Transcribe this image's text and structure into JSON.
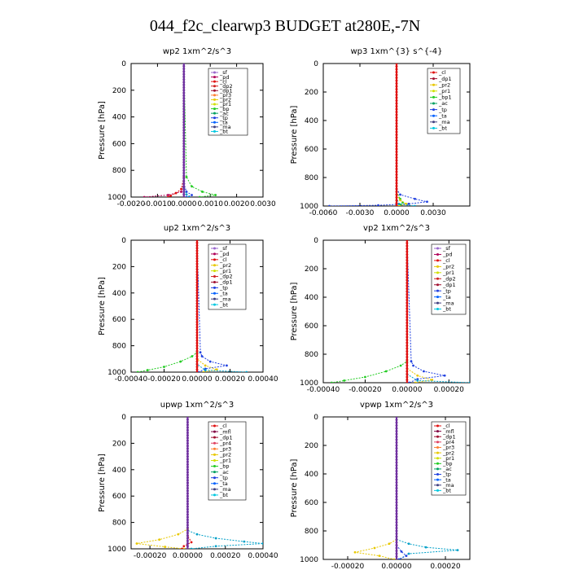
{
  "figure": {
    "title": "044_f2c_clearwp3  BUDGET at280E,-7N"
  },
  "chart_data": [
    {
      "type": "line",
      "title": "wp2   1xm^2/s^3",
      "ylabel": "Pressure [hPa]",
      "xlim": [
        -0.002,
        0.003
      ],
      "ylim": [
        1000,
        0
      ],
      "xticks": [
        -0.002,
        -0.001,
        0,
        0.001,
        0.002,
        0.003
      ],
      "xtick_labels": [
        "-0.0020",
        "-0.0010",
        "0.0000",
        "0.0010",
        "0.0020",
        "0.0030"
      ],
      "yticks": [
        0,
        200,
        400,
        600,
        800,
        1000
      ],
      "legend": [
        "_sf",
        "_pd",
        "_cl",
        "_dp2",
        "_dp1",
        "_pr3",
        "_pr2",
        "_pr1",
        "_bp",
        "_ac",
        "_tp",
        "_ta",
        "_ma",
        "_bt"
      ],
      "series": [
        {
          "name": "_pd",
          "color": "#b00058",
          "x": [
            0,
            0,
            0,
            -0.0001,
            -0.0006,
            -0.0015
          ],
          "y": [
            0,
            700,
            900,
            960,
            985,
            1000
          ]
        },
        {
          "name": "_dp2",
          "color": "#e01010",
          "x": [
            0,
            0,
            -0.0001,
            -0.0003,
            -0.0005,
            -0.0006
          ],
          "y": [
            0,
            850,
            940,
            970,
            990,
            1000
          ]
        },
        {
          "name": "_bp",
          "color": "#22cc22",
          "x": [
            0,
            0.0001,
            0.0003,
            0.0007,
            0.0012,
            0.0006
          ],
          "y": [
            0,
            850,
            920,
            960,
            985,
            1000
          ]
        },
        {
          "name": "_tp",
          "color": "#2040e0",
          "x": [
            0,
            0,
            0.0001,
            0.0003,
            0.0001
          ],
          "y": [
            0,
            900,
            960,
            985,
            1000
          ]
        },
        {
          "name": "_ac",
          "color": "#00a0c8",
          "x": [
            0,
            0,
            0.0001,
            0.0002
          ],
          "y": [
            0,
            930,
            980,
            1000
          ]
        },
        {
          "name": "_bt",
          "color": "#7030a0",
          "x": [
            0,
            0,
            0
          ],
          "y": [
            0,
            500,
            1000
          ]
        }
      ]
    },
    {
      "type": "line",
      "title": "wp3   1xm^{3} s^{-4}",
      "ylabel": "Pressure [hPa]",
      "xlim": [
        -0.006,
        0.006
      ],
      "ylim": [
        1000,
        0
      ],
      "xticks": [
        -0.006,
        -0.003,
        0,
        0.003
      ],
      "xtick_labels": [
        "-0.0060",
        "-0.0030",
        "0.0000",
        "0.0030"
      ],
      "yticks": [
        0,
        200,
        400,
        600,
        800,
        1000
      ],
      "legend": [
        "_cl",
        "_dp1",
        "_pr2",
        "_pr1",
        "_bp1",
        "_ac",
        "_tp",
        "_ta",
        "_ma",
        "_bt"
      ],
      "series": [
        {
          "name": "_tp",
          "color": "#2040e0",
          "x": [
            0,
            0,
            0.0003,
            0.0015,
            0.0025,
            0.001,
            -0.0015,
            -0.0055
          ],
          "y": [
            0,
            880,
            920,
            950,
            970,
            985,
            995,
            1000
          ]
        },
        {
          "name": "_pr1",
          "color": "#22cc22",
          "x": [
            0,
            0,
            0.0003,
            0.0005,
            0.0003,
            0
          ],
          "y": [
            0,
            900,
            950,
            975,
            990,
            1000
          ]
        },
        {
          "name": "_pr2",
          "color": "#e8c800",
          "x": [
            0,
            0,
            0.0003,
            0.0008,
            0.0002
          ],
          "y": [
            0,
            920,
            960,
            985,
            1000
          ]
        },
        {
          "name": "_ac",
          "color": "#00a0c8",
          "x": [
            0,
            0,
            0.0002,
            0.0015
          ],
          "y": [
            0,
            940,
            985,
            1000
          ]
        },
        {
          "name": "_cl",
          "color": "#e01010",
          "x": [
            0,
            0,
            0
          ],
          "y": [
            0,
            500,
            1000
          ]
        }
      ]
    },
    {
      "type": "line",
      "title": "up2   1xm^2/s^3",
      "ylabel": "Pressure [hPa]",
      "xlim": [
        -0.0004,
        0.0004
      ],
      "ylim": [
        1000,
        0
      ],
      "xticks": [
        -0.0004,
        -0.0002,
        0,
        0.0002,
        0.0004
      ],
      "xtick_labels": [
        "-0.00040",
        "-0.00020",
        "0.00000",
        "0.00020",
        "0.00040"
      ],
      "yticks": [
        0,
        200,
        400,
        600,
        800,
        1000
      ],
      "legend": [
        "_sf",
        "_pd",
        "_cl",
        "_pr2",
        "_pr1",
        "_dp2",
        "_dp1",
        "_tp",
        "_ta",
        "_ma",
        "_bt"
      ],
      "series": [
        {
          "name": "_dp2",
          "color": "#22cc22",
          "x": [
            0,
            0,
            -3e-05,
            -0.0001,
            -0.0002,
            -0.0003,
            -0.00036
          ],
          "y": [
            0,
            850,
            880,
            920,
            960,
            985,
            1000
          ]
        },
        {
          "name": "_tp",
          "color": "#2040e0",
          "x": [
            0,
            2e-05,
            3e-05,
            8e-05,
            0.00018,
            5e-05,
            1e-05
          ],
          "y": [
            0,
            850,
            880,
            920,
            950,
            975,
            1000
          ]
        },
        {
          "name": "_pr1",
          "color": "#e8c800",
          "x": [
            0,
            0,
            5e-05,
            0.00012,
            4e-05
          ],
          "y": [
            0,
            900,
            950,
            980,
            1000
          ]
        },
        {
          "name": "_ta",
          "color": "#00a0c8",
          "x": [
            0,
            0,
            5e-05,
            0.0003
          ],
          "y": [
            0,
            940,
            985,
            1000
          ]
        },
        {
          "name": "_pd",
          "color": "#e01010",
          "x": [
            0,
            0,
            0
          ],
          "y": [
            0,
            500,
            1000
          ]
        }
      ]
    },
    {
      "type": "line",
      "title": "vp2   1xm^2/s^3",
      "ylabel": "Pressure [hPa]",
      "xlim": [
        -0.0004,
        0.0003
      ],
      "ylim": [
        1000,
        0
      ],
      "xticks": [
        -0.0004,
        -0.0002,
        0,
        0.0002
      ],
      "xtick_labels": [
        "-0.00040",
        "-0.00020",
        "0.00000",
        "0.00020"
      ],
      "yticks": [
        0,
        200,
        400,
        600,
        800,
        1000
      ],
      "legend": [
        "_sf",
        "_pd",
        "_cl",
        "_pr2",
        "_pr1",
        "_dp2",
        "_dp1",
        "_tp",
        "_ta",
        "_ma",
        "_bt"
      ],
      "series": [
        {
          "name": "_dp2",
          "color": "#22cc22",
          "x": [
            0,
            0,
            -3e-05,
            -0.0001,
            -0.0002,
            -0.0003,
            -0.00036
          ],
          "y": [
            0,
            850,
            880,
            920,
            960,
            985,
            1000
          ]
        },
        {
          "name": "_tp",
          "color": "#2040e0",
          "x": [
            0,
            2e-05,
            3e-05,
            8e-05,
            0.00018,
            5e-05,
            1e-05
          ],
          "y": [
            0,
            850,
            880,
            920,
            950,
            975,
            1000
          ]
        },
        {
          "name": "_pr1",
          "color": "#e8c800",
          "x": [
            0,
            0,
            5e-05,
            0.00012,
            4e-05
          ],
          "y": [
            0,
            900,
            950,
            980,
            1000
          ]
        },
        {
          "name": "_ta",
          "color": "#00a0c8",
          "x": [
            0,
            0,
            5e-05,
            0.0003
          ],
          "y": [
            0,
            940,
            985,
            1000
          ]
        },
        {
          "name": "_pd",
          "color": "#e01010",
          "x": [
            0,
            0,
            0
          ],
          "y": [
            0,
            500,
            1000
          ]
        }
      ]
    },
    {
      "type": "line",
      "title": "upwp   1xm^2/s^3",
      "ylabel": "Pressure [hPa]",
      "xlim": [
        -0.0003,
        0.0004
      ],
      "ylim": [
        1000,
        0
      ],
      "xticks": [
        -0.0002,
        0,
        0.0002,
        0.0004
      ],
      "xtick_labels": [
        "-0.00020",
        "0.00000",
        "0.00020",
        "0.00040"
      ],
      "yticks": [
        0,
        200,
        400,
        600,
        800,
        1000
      ],
      "legend": [
        "_cl",
        "_mfl",
        "_dp1",
        "_pr4",
        "_pr3",
        "_pr2",
        "_pr1",
        "_bp",
        "_ac",
        "_tp",
        "_ta",
        "_ma",
        "_bt"
      ],
      "series": [
        {
          "name": "_ta",
          "color": "#00a0c8",
          "x": [
            0,
            0,
            5e-05,
            0.00015,
            0.0003,
            0.0004,
            0.00015,
            2e-05
          ],
          "y": [
            0,
            860,
            890,
            920,
            945,
            960,
            980,
            1000
          ]
        },
        {
          "name": "_pr1",
          "color": "#e8c800",
          "x": [
            0,
            0,
            -5e-05,
            -0.00015,
            -0.00027,
            -0.00012,
            -2e-05
          ],
          "y": [
            0,
            850,
            890,
            930,
            960,
            985,
            1000
          ]
        },
        {
          "name": "_pr2",
          "color": "#e01010",
          "x": [
            0,
            0,
            2e-05,
            -2e-05,
            -3e-05
          ],
          "y": [
            0,
            900,
            950,
            980,
            1000
          ]
        },
        {
          "name": "_cl",
          "color": "#7030a0",
          "x": [
            0,
            0,
            0
          ],
          "y": [
            0,
            500,
            1000
          ]
        }
      ]
    },
    {
      "type": "line",
      "title": "vpwp   1xm^2/s^3",
      "ylabel": "Pressure [hPa]",
      "xlim": [
        -0.0003,
        0.0003
      ],
      "ylim": [
        1000,
        0
      ],
      "xticks": [
        -0.0002,
        0,
        0.0002
      ],
      "xtick_labels": [
        "-0.00020",
        "0.00000",
        "0.00020"
      ],
      "yticks": [
        0,
        200,
        400,
        600,
        800,
        1000
      ],
      "legend": [
        "_cl",
        "_mfl",
        "_dp1",
        "_pr4",
        "_pr3",
        "_pr2",
        "_pr1",
        "_bp",
        "_ac",
        "_tp",
        "_ta",
        "_ma",
        "_bt"
      ],
      "series": [
        {
          "name": "_ta",
          "color": "#00a0c8",
          "x": [
            0,
            0,
            5e-05,
            0.00012,
            0.00025,
            5e-05,
            1e-05
          ],
          "y": [
            0,
            860,
            890,
            915,
            935,
            960,
            1000
          ]
        },
        {
          "name": "_pr1",
          "color": "#e8c800",
          "x": [
            0,
            0,
            -3e-05,
            -9e-05,
            -0.00017,
            -7e-05,
            -1e-05
          ],
          "y": [
            0,
            860,
            890,
            920,
            950,
            975,
            1000
          ]
        },
        {
          "name": "_tp",
          "color": "#2040e0",
          "x": [
            0,
            0,
            2e-05,
            4e-05,
            1e-05
          ],
          "y": [
            0,
            900,
            945,
            975,
            1000
          ]
        },
        {
          "name": "_cl",
          "color": "#7030a0",
          "x": [
            0,
            0,
            0
          ],
          "y": [
            0,
            500,
            1000
          ]
        }
      ]
    }
  ],
  "legend_colors": {
    "_sf": "#9966cc",
    "_pd": "#b00058",
    "_cl": "#e01010",
    "_mfl": "#800040",
    "_dp2": "#d02020",
    "_dp1": "#a01030",
    "_pr4": "#e04060",
    "_pr3": "#ff7f30",
    "_pr2": "#e8c800",
    "_pr1": "#d0e000",
    "_bp": "#22cc22",
    "_bp1": "#22cc22",
    "_ac": "#00a060",
    "_tp": "#2040e0",
    "_ta": "#0060ff",
    "_ma": "#404080",
    "_bt": "#00c8e0"
  }
}
